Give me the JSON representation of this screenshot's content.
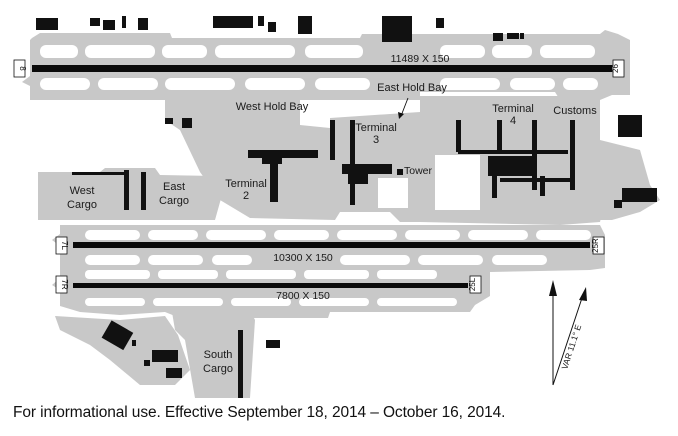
{
  "diagram": {
    "runways": [
      {
        "id": "runway-8-26",
        "dimensions": "11489 X 150",
        "end_left": "8",
        "end_right": "26"
      },
      {
        "id": "runway-7l-25r",
        "dimensions": "10300 X 150",
        "end_left": "7L",
        "end_right": "25R"
      },
      {
        "id": "runway-7r-25l",
        "dimensions": "7800 X 150",
        "end_left": "7R",
        "end_right": "25L"
      }
    ],
    "labels": {
      "west_hold_bay": "West Hold Bay",
      "east_hold_bay": "East Hold Bay",
      "terminal_3_line1": "Terminal",
      "terminal_3_line2": "3",
      "terminal_4_line1": "Terminal",
      "terminal_4_line2": "4",
      "customs": "Customs",
      "tower": "Tower",
      "terminal_2_line1": "Terminal",
      "terminal_2_line2": "2",
      "west_cargo_line1": "West",
      "west_cargo_line2": "Cargo",
      "east_cargo_line1": "East",
      "east_cargo_line2": "Cargo",
      "south_cargo_line1": "South",
      "south_cargo_line2": "Cargo"
    },
    "variation": "VAR 11.1° E",
    "colors": {
      "pavement": "#c8c8c8",
      "building": "#111111",
      "runway": "#0a0a0a",
      "background": "#ffffff"
    }
  },
  "footer": "For informational use. Effective September 18, 2014 – October 16, 2014."
}
